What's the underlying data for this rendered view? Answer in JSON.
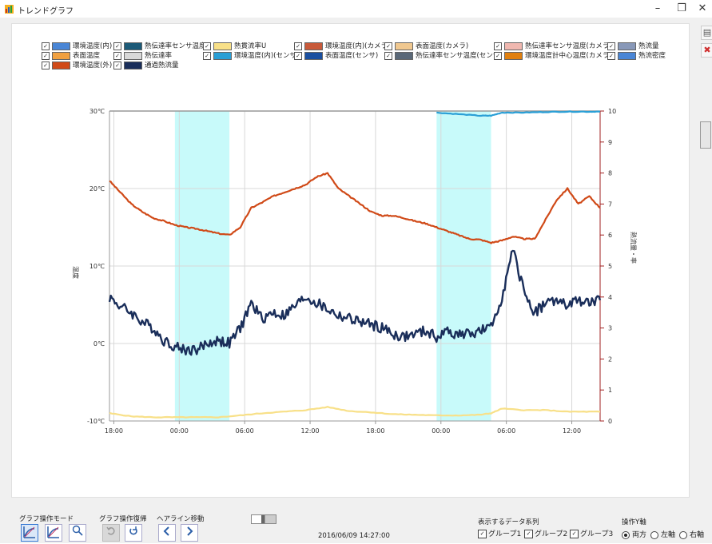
{
  "window": {
    "title": "トレンドグラフ",
    "minimize": "–",
    "restore": "❐",
    "close": "✕"
  },
  "legend": {
    "items": [
      {
        "label": "環境温度(内)",
        "color": "#4a86d6"
      },
      {
        "label": "表面温度",
        "color": "#f0a040"
      },
      {
        "label": "環境温度(外)",
        "color": "#d04a18"
      },
      {
        "label": "熱伝達率センサ温度",
        "color": "#1c5a78"
      },
      {
        "label": "熱伝達率",
        "color": "#d8d8d8"
      },
      {
        "label": "通過熱流量",
        "color": "#1a2e5a"
      },
      {
        "label": "熱貫流率U",
        "color": "#f8e088"
      },
      {
        "label": "環境温度(内)(センサ)",
        "color": "#2a9fd6"
      },
      {
        "label": "環境温度(内)(カメラ)",
        "color": "#c85a3a"
      },
      {
        "label": "表面温度(センサ)",
        "color": "#1a4fa0"
      },
      {
        "label": "表面温度(カメラ)",
        "color": "#f0c890"
      },
      {
        "label": "熱伝達率センサ温度(センサ)",
        "color": "#5a6878"
      },
      {
        "label": "熱伝達率センサ温度(カメラ)",
        "color": "#f0b8b0"
      },
      {
        "label": "環境温度計中心温度(カメラ)",
        "color": "#e08010"
      },
      {
        "label": "熱流量",
        "color": "#8898b8"
      },
      {
        "label": "熱流密度",
        "color": "#4a86d6"
      }
    ]
  },
  "chart_data": {
    "type": "line",
    "title": "",
    "ylabel_left": "温度",
    "ylabel_right": "熱流量・率",
    "ylim_left": [
      -10,
      30
    ],
    "ylim_right": [
      0,
      10
    ],
    "yticks_left": [
      "30℃",
      "20℃",
      "10℃",
      "0℃",
      "-10℃"
    ],
    "yticks_right": [
      "10",
      "9",
      "8",
      "7",
      "6",
      "5",
      "4",
      "3",
      "2",
      "1",
      "0"
    ],
    "xticks": [
      "18:00",
      "00:00",
      "06:00",
      "12:00",
      "18:00",
      "00:00",
      "06:00",
      "12:00"
    ],
    "x_start": "18:00 (day 1)",
    "shaded_ranges_hours": [
      [
        6.0,
        11.0
      ],
      [
        30.0,
        35.0
      ]
    ],
    "series": [
      {
        "name": "環境温度(外)",
        "color": "#d04a18",
        "axis": "left",
        "x": [
          0,
          1,
          2,
          3,
          4,
          5,
          6,
          7,
          8,
          9,
          10,
          11,
          12,
          13,
          14,
          15,
          16,
          17,
          18,
          19,
          20,
          21,
          22,
          23,
          24,
          25,
          26,
          27,
          28,
          29,
          30,
          31,
          32,
          33,
          34,
          35,
          36,
          37,
          38,
          39,
          40,
          41,
          42,
          43,
          44,
          45
        ],
        "y": [
          21,
          19.5,
          18,
          17,
          16.2,
          15.8,
          15.3,
          15,
          14.8,
          14.5,
          14.2,
          14,
          15,
          17.5,
          18.2,
          19,
          19.5,
          20,
          20.5,
          21.5,
          22,
          20,
          19,
          18,
          17,
          16.5,
          16.5,
          16.2,
          15.8,
          15.5,
          15,
          14.5,
          14,
          13.5,
          13.4,
          13,
          13.3,
          13.8,
          13.5,
          13.5,
          16,
          18.5,
          20,
          18,
          19,
          17.5
        ]
      },
      {
        "name": "通過熱流量",
        "color": "#1a2e5a",
        "axis": "right",
        "x": [
          0,
          1,
          2,
          3,
          4,
          5,
          6,
          7,
          8,
          9,
          10,
          11,
          12,
          13,
          14,
          15,
          16,
          17,
          18,
          19,
          20,
          21,
          22,
          23,
          24,
          25,
          26,
          27,
          28,
          29,
          30,
          31,
          32,
          33,
          34,
          35,
          36,
          37,
          38,
          39,
          40,
          41,
          42,
          43,
          44,
          45
        ],
        "y": [
          4,
          3.7,
          3.5,
          3.2,
          3,
          2.6,
          2.4,
          2.3,
          2.3,
          2.5,
          2.6,
          2.5,
          3,
          3.8,
          3.3,
          3.5,
          3.4,
          3.7,
          4,
          3.8,
          3.6,
          3.4,
          3.3,
          3.2,
          3.1,
          3,
          2.8,
          2.7,
          2.8,
          2.9,
          2.7,
          2.9,
          2.8,
          2.8,
          2.9,
          3,
          4,
          5.5,
          4.2,
          3.5,
          3.8,
          3.9,
          3.7,
          3.9,
          3.8,
          3.9
        ]
      },
      {
        "name": "熱貫流率U",
        "color": "#f8e088",
        "axis": "right",
        "x": [
          0,
          2,
          4,
          6,
          8,
          10,
          12,
          14,
          16,
          18,
          20,
          22,
          24,
          26,
          28,
          30,
          32,
          34,
          35,
          36,
          38,
          40,
          42,
          44,
          45
        ],
        "y": [
          0.25,
          0.15,
          0.12,
          0.12,
          0.12,
          0.12,
          0.18,
          0.25,
          0.3,
          0.35,
          0.45,
          0.32,
          0.28,
          0.22,
          0.2,
          0.18,
          0.18,
          0.2,
          0.25,
          0.4,
          0.35,
          0.35,
          0.3,
          0.3,
          0.3
        ]
      },
      {
        "name": "環境温度(内)(センサ)",
        "color": "#2a9fd6",
        "axis": "right",
        "x": [
          30,
          32,
          34,
          35,
          36,
          38,
          40,
          42,
          44,
          45
        ],
        "y": [
          9.95,
          9.9,
          9.85,
          9.85,
          9.95,
          9.95,
          9.97,
          9.98,
          9.98,
          9.98
        ]
      }
    ]
  },
  "side": {
    "btn1": "▤",
    "btn2": "✖"
  },
  "bottom": {
    "mode_label": "グラフ操作モード",
    "undo_label": "グラフ操作復帰",
    "cursor_label": "ヘアライン移動",
    "timestamp": "2016/06/09 14:27:00",
    "series_label": "表示するデータ系列",
    "groups": [
      "グループ1",
      "グループ2",
      "グループ3"
    ],
    "axis_label": "操作Y軸",
    "axis_options": [
      "両方",
      "左軸",
      "右軸"
    ]
  }
}
